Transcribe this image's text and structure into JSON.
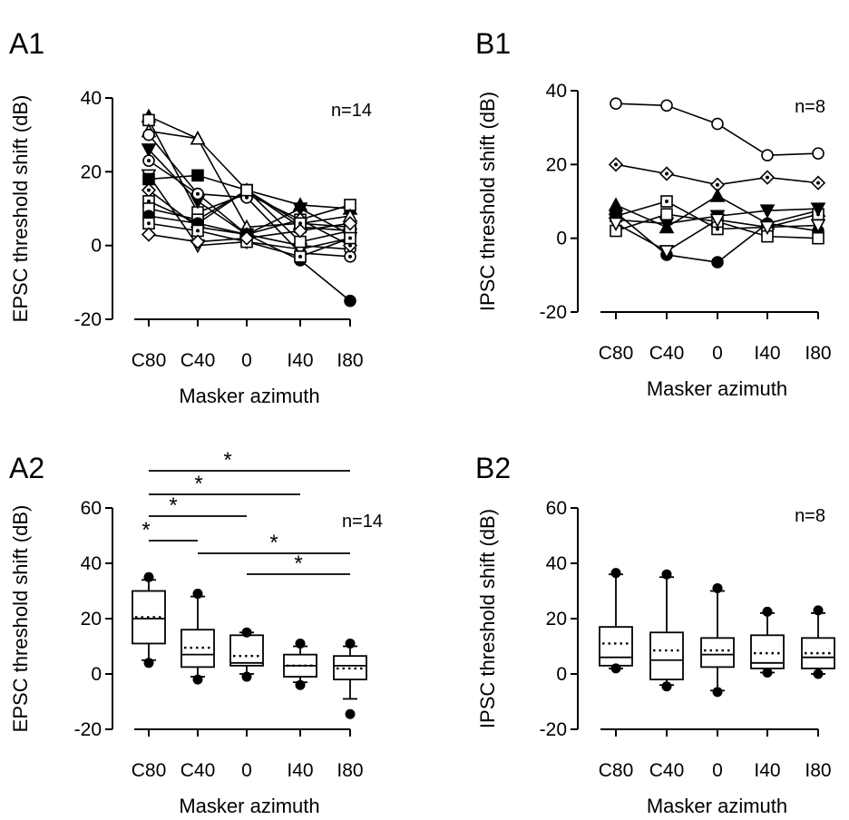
{
  "chart_data": [
    {
      "panel": "A1",
      "type": "line",
      "ylabel": "EPSC threshold shift (dB)",
      "xlabel": "Masker azimuth",
      "categories": [
        "C80",
        "C40",
        "0",
        "I40",
        "I80"
      ],
      "ylim": [
        -20,
        40
      ],
      "yticks": [
        "40",
        "20",
        "0",
        "-20"
      ],
      "annotation": "n=14",
      "series": [
        {
          "marker": "triangle-up-filled",
          "values": [
            35,
            29,
            15,
            11,
            10
          ]
        },
        {
          "marker": "square-open",
          "values": [
            34,
            9,
            14,
            7,
            11
          ]
        },
        {
          "marker": "triangle-up-open",
          "values": [
            31,
            29,
            5,
            6,
            8
          ]
        },
        {
          "marker": "circle-open",
          "values": [
            30,
            14,
            3,
            0,
            -1
          ]
        },
        {
          "marker": "triangle-down-filled",
          "values": [
            26,
            12,
            3,
            10,
            3
          ]
        },
        {
          "marker": "circle-dot",
          "values": [
            23,
            14,
            13,
            -2,
            -3
          ]
        },
        {
          "marker": "triangle-down-open",
          "values": [
            19,
            0,
            1,
            -1,
            2
          ]
        },
        {
          "marker": "square-filled",
          "values": [
            18,
            19,
            15,
            5,
            4
          ]
        },
        {
          "marker": "diamond-dot",
          "values": [
            15,
            5,
            3,
            7,
            0
          ]
        },
        {
          "marker": "square-dot",
          "values": [
            12,
            6,
            15,
            6,
            5
          ]
        },
        {
          "marker": "square-open",
          "values": [
            10,
            7,
            15,
            1,
            4
          ]
        },
        {
          "marker": "circle-filled",
          "values": [
            8,
            6,
            3,
            -4,
            -15
          ]
        },
        {
          "marker": "square-dot",
          "values": [
            6,
            4,
            1,
            -3,
            2
          ]
        },
        {
          "marker": "diamond-open",
          "values": [
            3,
            1,
            2,
            4,
            6
          ]
        }
      ]
    },
    {
      "panel": "B1",
      "type": "line",
      "ylabel": "IPSC threshold shift (dB)",
      "xlabel": "Masker azimuth",
      "categories": [
        "C80",
        "C40",
        "0",
        "I40",
        "I80"
      ],
      "ylim": [
        -20,
        40
      ],
      "yticks": [
        "40",
        "20",
        "0",
        "-20"
      ],
      "annotation": "n=8",
      "series": [
        {
          "marker": "circle-open",
          "values": [
            36.5,
            36,
            31,
            22.5,
            23
          ]
        },
        {
          "marker": "diamond-dot",
          "values": [
            20,
            17.5,
            14.5,
            16.5,
            15
          ]
        },
        {
          "marker": "triangle-up-filled",
          "values": [
            9,
            3,
            11.5,
            4,
            7.5
          ]
        },
        {
          "marker": "square-dot",
          "values": [
            6,
            10,
            2.5,
            3,
            6.5
          ]
        },
        {
          "marker": "triangle-down-filled",
          "values": [
            5,
            4,
            6,
            7.5,
            8
          ]
        },
        {
          "marker": "circle-filled",
          "values": [
            7,
            -4.5,
            -6.5,
            4,
            2
          ]
        },
        {
          "marker": "square-open",
          "values": [
            2,
            6.5,
            4.5,
            0.5,
            0
          ]
        },
        {
          "marker": "triangle-down-open",
          "values": [
            4,
            -3.5,
            5,
            3,
            3.5
          ]
        }
      ]
    },
    {
      "panel": "A2",
      "type": "box",
      "ylabel": "EPSC threshold shift (dB)",
      "xlabel": "Masker azimuth",
      "categories": [
        "C80",
        "C40",
        "0",
        "I40",
        "I80"
      ],
      "ylim": [
        -20,
        60
      ],
      "yticks": [
        "60",
        "40",
        "20",
        "0",
        "-20"
      ],
      "annotation": "n=14",
      "boxes": [
        {
          "q1": 11,
          "median": 20,
          "q3": 30,
          "mean": 20.5,
          "wlo": 5,
          "whi": 34,
          "outliers": [
            35,
            4
          ]
        },
        {
          "q1": 2.5,
          "median": 7,
          "q3": 16,
          "mean": 9.5,
          "wlo": -1,
          "whi": 28,
          "outliers": [
            29,
            -2
          ]
        },
        {
          "q1": 3,
          "median": 4,
          "q3": 14,
          "mean": 6.5,
          "wlo": 0,
          "whi": 15,
          "outliers": [
            15,
            -1
          ]
        },
        {
          "q1": -1,
          "median": 3,
          "q3": 7,
          "mean": 3,
          "wlo": -3,
          "whi": 10,
          "outliers": [
            11,
            -4
          ]
        },
        {
          "q1": -2,
          "median": 3,
          "q3": 6.5,
          "mean": 2,
          "wlo": -9,
          "whi": 10,
          "outliers": [
            11,
            -14.5
          ]
        }
      ],
      "significance": [
        {
          "from": 0,
          "to": 4,
          "label": "*"
        },
        {
          "from": 0,
          "to": 3,
          "label": "*"
        },
        {
          "from": 0,
          "to": 2,
          "label": "*"
        },
        {
          "from": 0,
          "to": 1,
          "label": "*"
        },
        {
          "from": 1,
          "to": 4,
          "label": "*"
        },
        {
          "from": 2,
          "to": 4,
          "label": "*"
        }
      ]
    },
    {
      "panel": "B2",
      "type": "box",
      "ylabel": "IPSC threshold shift (dB)",
      "xlabel": "Masker azimuth",
      "categories": [
        "C80",
        "C40",
        "0",
        "I40",
        "I80"
      ],
      "ylim": [
        -20,
        60
      ],
      "yticks": [
        "60",
        "40",
        "20",
        "0",
        "-20"
      ],
      "annotation": "n=8",
      "boxes": [
        {
          "q1": 3,
          "median": 6,
          "q3": 17,
          "mean": 11,
          "wlo": 2,
          "whi": 36,
          "outliers": [
            36.5,
            2
          ]
        },
        {
          "q1": -2,
          "median": 5,
          "q3": 15,
          "mean": 8.5,
          "wlo": -4,
          "whi": 35,
          "outliers": [
            36,
            -4.5
          ]
        },
        {
          "q1": 2.5,
          "median": 7,
          "q3": 13,
          "mean": 8.5,
          "wlo": -6,
          "whi": 30,
          "outliers": [
            31,
            -6.5
          ]
        },
        {
          "q1": 2,
          "median": 4,
          "q3": 14,
          "mean": 7.5,
          "wlo": 0.5,
          "whi": 22,
          "outliers": [
            22.5,
            0.5
          ]
        },
        {
          "q1": 2,
          "median": 6,
          "q3": 13,
          "mean": 7.5,
          "wlo": 0,
          "whi": 22,
          "outliers": [
            23,
            0
          ]
        }
      ]
    }
  ]
}
